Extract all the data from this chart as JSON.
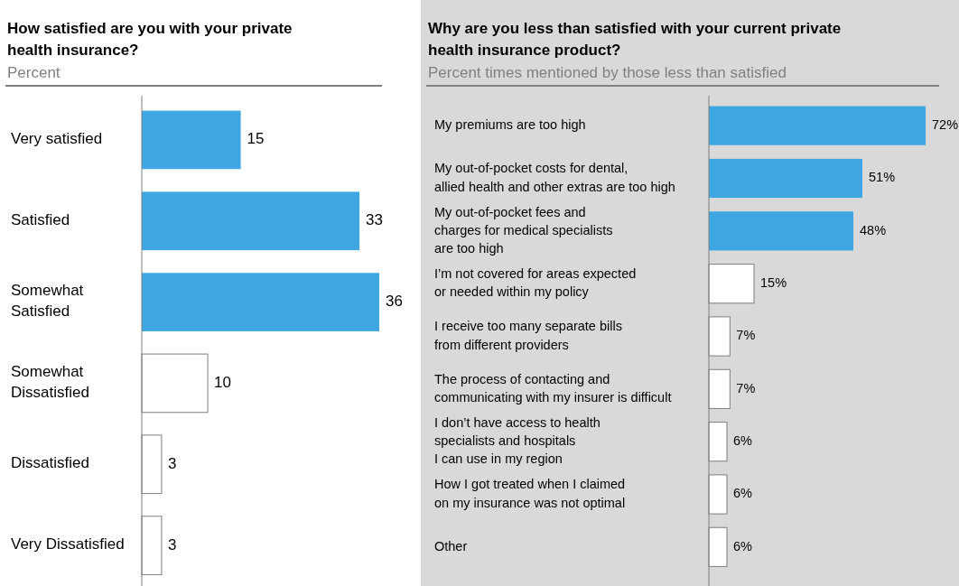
{
  "chart_data": [
    {
      "type": "bar",
      "orientation": "horizontal",
      "title": "How satisfied are you with your private\nhealth insurance?",
      "subtitle": "Percent",
      "categories": [
        "Very satisfied",
        "Satisfied",
        "Somewhat\nSatisfied",
        "Somewhat\nDissatisfied",
        "Dissatisfied",
        "Very Dissatisfied"
      ],
      "values": [
        15,
        33,
        36,
        10,
        3,
        3
      ],
      "colors": [
        "#3ea6e2",
        "#3ea6e2",
        "#3ea6e2",
        "#ffffff",
        "#ffffff",
        "#ffffff"
      ],
      "data_labels": true
    },
    {
      "type": "bar",
      "orientation": "horizontal",
      "title": "Why are you less than satisfied with your current private\nhealth insurance product?",
      "subtitle": "Percent times mentioned by those less than satisfied",
      "categories": [
        "My premiums are too high",
        "My out-of-pocket costs for dental,\nallied health and other extras are too high",
        "My out-of-pocket fees and\ncharges for medical specialists\nare too high",
        "I’m not covered for areas expected\nor needed within my policy",
        "I receive too many separate bills\nfrom different providers",
        "The process of contacting and\ncommunicating with my insurer is difficult",
        "I don’t have access to health\nspecialists and hospitals\nI can use in my region",
        "How I got treated when I claimed\non my insurance was not optimal",
        "Other"
      ],
      "values": [
        72,
        51,
        48,
        15,
        7,
        7,
        6,
        6,
        6
      ],
      "colors": [
        "#3ea6e2",
        "#3ea6e2",
        "#3ea6e2",
        "#ffffff",
        "#ffffff",
        "#ffffff",
        "#ffffff",
        "#ffffff",
        "#ffffff"
      ],
      "value_labels": [
        "72%",
        "51%",
        "48%",
        "15%",
        "7%",
        "7%",
        "6%",
        "6%",
        "6%"
      ]
    }
  ]
}
